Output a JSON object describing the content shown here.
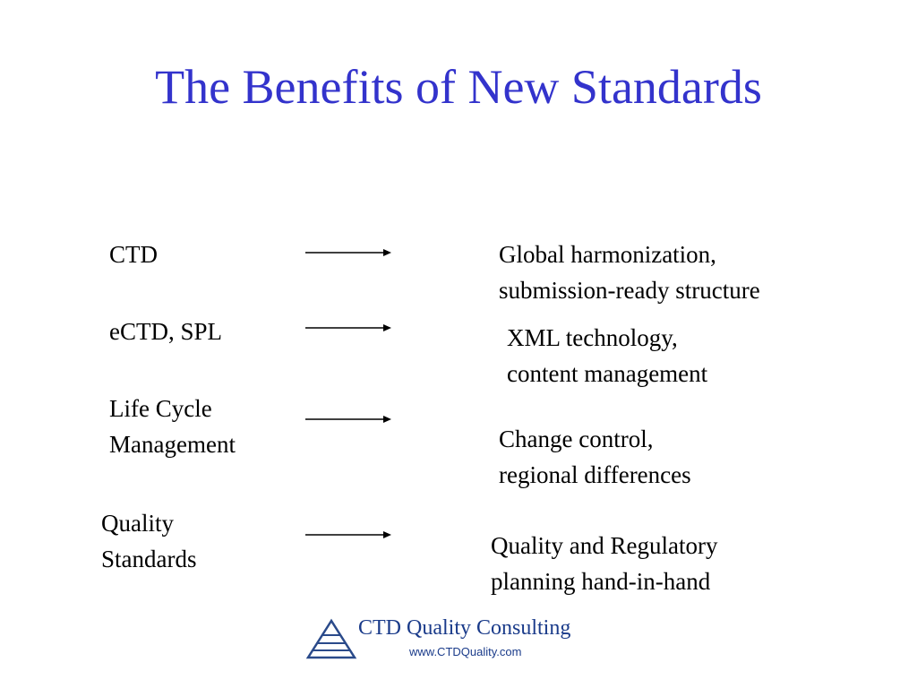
{
  "header": {
    "title": "The Benefits of New Standards"
  },
  "rows": [
    {
      "left": [
        "CTD"
      ],
      "right": [
        "Global harmonization,",
        "submission-ready structure"
      ]
    },
    {
      "left": [
        "eCTD, SPL"
      ],
      "right": [
        "XML technology,",
        "content management"
      ]
    },
    {
      "left": [
        "Life Cycle",
        "Management"
      ],
      "right": [
        "Change control,",
        "regional differences"
      ]
    },
    {
      "left": [
        "Quality",
        "Standards"
      ],
      "right": [
        "Quality and Regulatory",
        "planning hand-in-hand"
      ]
    }
  ],
  "footer": {
    "brand": "CTD Quality Consulting",
    "url": "www.CTDQuality.com"
  }
}
